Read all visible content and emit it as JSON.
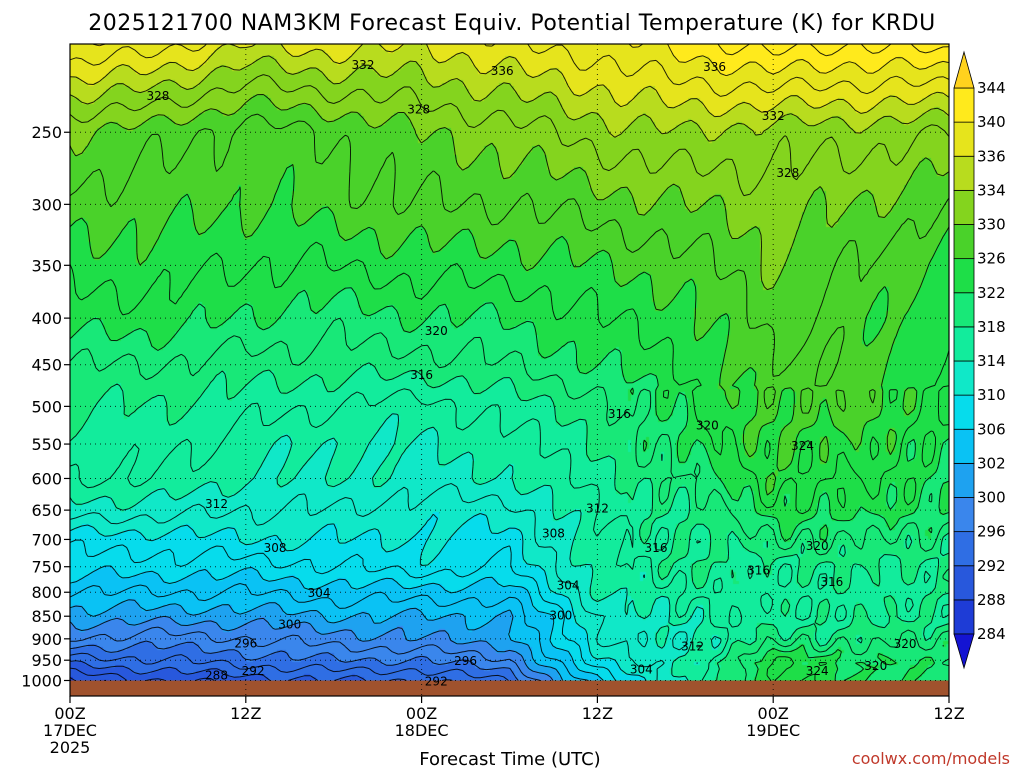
{
  "chart_data": {
    "type": "heatmap",
    "title": "2025121700 NAM3KM Forecast Equiv. Potential Temperature (K) for KRDU",
    "xlabel": "Forecast Time (UTC)",
    "ylabel": "",
    "credit": "coolwx.com/models",
    "x_range": [
      0,
      60
    ],
    "x_unit": "hours from 2025-12-17 00Z",
    "x_ticks": [
      {
        "x": 0,
        "line1": "00Z",
        "line2": "17DEC",
        "line3": "2025"
      },
      {
        "x": 12,
        "line1": "12Z",
        "line2": "",
        "line3": ""
      },
      {
        "x": 24,
        "line1": "00Z",
        "line2": "18DEC",
        "line3": ""
      },
      {
        "x": 36,
        "line1": "12Z",
        "line2": "",
        "line3": ""
      },
      {
        "x": 48,
        "line1": "00Z",
        "line2": "19DEC",
        "line3": ""
      },
      {
        "x": 60,
        "line1": "12Z",
        "line2": "",
        "line3": ""
      }
    ],
    "y_axis": {
      "scale": "log",
      "unit": "hPa",
      "range": [
        1040,
        200
      ],
      "inverted": true,
      "ticks": [
        250,
        300,
        350,
        400,
        450,
        500,
        550,
        600,
        650,
        700,
        750,
        800,
        850,
        900,
        950,
        1000
      ]
    },
    "colorbar": {
      "levels": [
        284,
        288,
        292,
        296,
        300,
        302,
        306,
        310,
        314,
        318,
        322,
        326,
        330,
        334,
        336,
        340,
        344
      ],
      "colors": [
        "#1414d2",
        "#1e3cd6",
        "#2858dc",
        "#2f6ee4",
        "#3a86ec",
        "#1ea2f0",
        "#0ac2f4",
        "#06dcec",
        "#10e8c8",
        "#12ec9c",
        "#18e878",
        "#1ede48",
        "#4ad22a",
        "#84d41e",
        "#b8dc1e",
        "#e6e41c",
        "#ffea1c",
        "#ffd21e"
      ]
    },
    "pressure_levels": [
      200,
      250,
      300,
      350,
      400,
      450,
      500,
      550,
      600,
      650,
      700,
      750,
      800,
      850,
      900,
      950,
      1000
    ],
    "times": [
      0,
      6,
      12,
      18,
      24,
      30,
      36,
      42,
      48,
      54,
      60
    ],
    "theta_e": [
      [
        340,
        339,
        336,
        337,
        336,
        338,
        339,
        341,
        343,
        342,
        343
      ],
      [
        330,
        329,
        327,
        328,
        330,
        331,
        333,
        334,
        333,
        333,
        332
      ],
      [
        327,
        327,
        326,
        327,
        328,
        328,
        329,
        330,
        331,
        330,
        328
      ],
      [
        325,
        325,
        324,
        324,
        325,
        325,
        326,
        327,
        330,
        328,
        325
      ],
      [
        323,
        323,
        322,
        321,
        322,
        322,
        324,
        325,
        329,
        327,
        324
      ],
      [
        320,
        320,
        319,
        319,
        319,
        320,
        322,
        324,
        328,
        327,
        324
      ],
      [
        318,
        318,
        317,
        316,
        315,
        317,
        319,
        323,
        327,
        327,
        324
      ],
      [
        317,
        317,
        315,
        314,
        314,
        315,
        318,
        322,
        326,
        325,
        323
      ],
      [
        316,
        316,
        314,
        314,
        313,
        314,
        317,
        320,
        325,
        324,
        322
      ],
      [
        313,
        313,
        312,
        312,
        311,
        311,
        316,
        318,
        323,
        323,
        321
      ],
      [
        309,
        309,
        310,
        310,
        310,
        309,
        316,
        317,
        320,
        320,
        319
      ],
      [
        307,
        307,
        307,
        308,
        309,
        308,
        315,
        318,
        317,
        318,
        318
      ],
      [
        304,
        304,
        304,
        305,
        305,
        305,
        314,
        316,
        317,
        317,
        318
      ],
      [
        301,
        301,
        301,
        302,
        302,
        302,
        312,
        315,
        317,
        317,
        318
      ],
      [
        298,
        297,
        298,
        299,
        300,
        301,
        312,
        313,
        319,
        319,
        320
      ],
      [
        293,
        294,
        295,
        296,
        296,
        298,
        310,
        314,
        324,
        322,
        321
      ],
      [
        288,
        290,
        291,
        292,
        292,
        294,
        306,
        314,
        324,
        322,
        321
      ]
    ],
    "contour_labels": [
      {
        "text": "332",
        "t": 20.0,
        "p": 211
      },
      {
        "text": "336",
        "t": 29.5,
        "p": 214
      },
      {
        "text": "336",
        "t": 44.0,
        "p": 212
      },
      {
        "text": "328",
        "t": 6.0,
        "p": 228
      },
      {
        "text": "328",
        "t": 23.8,
        "p": 236
      },
      {
        "text": "332",
        "t": 48.0,
        "p": 240
      },
      {
        "text": "328",
        "t": 49.0,
        "p": 277
      },
      {
        "text": "320",
        "t": 25.0,
        "p": 413
      },
      {
        "text": "316",
        "t": 24.0,
        "p": 462
      },
      {
        "text": "316",
        "t": 37.5,
        "p": 510
      },
      {
        "text": "320",
        "t": 43.5,
        "p": 525
      },
      {
        "text": "324",
        "t": 50.0,
        "p": 553
      },
      {
        "text": "312",
        "t": 10.0,
        "p": 640
      },
      {
        "text": "312",
        "t": 36.0,
        "p": 647
      },
      {
        "text": "308",
        "t": 33.0,
        "p": 690
      },
      {
        "text": "316",
        "t": 40.0,
        "p": 715
      },
      {
        "text": "320",
        "t": 51.0,
        "p": 712
      },
      {
        "text": "308",
        "t": 14.0,
        "p": 715
      },
      {
        "text": "316",
        "t": 47.0,
        "p": 757
      },
      {
        "text": "316",
        "t": 52.0,
        "p": 780
      },
      {
        "text": "304",
        "t": 34.0,
        "p": 786
      },
      {
        "text": "304",
        "t": 17.0,
        "p": 802
      },
      {
        "text": "300",
        "t": 33.5,
        "p": 848
      },
      {
        "text": "300",
        "t": 15.0,
        "p": 868
      },
      {
        "text": "296",
        "t": 12.0,
        "p": 911
      },
      {
        "text": "312",
        "t": 42.5,
        "p": 918
      },
      {
        "text": "320",
        "t": 57.0,
        "p": 912
      },
      {
        "text": "296",
        "t": 27.0,
        "p": 952
      },
      {
        "text": "292",
        "t": 12.5,
        "p": 976
      },
      {
        "text": "288",
        "t": 10.0,
        "p": 987
      },
      {
        "text": "304",
        "t": 39.0,
        "p": 972
      },
      {
        "text": "324",
        "t": 51.0,
        "p": 976
      },
      {
        "text": "320",
        "t": 55.0,
        "p": 964
      },
      {
        "text": "292",
        "t": 25.0,
        "p": 1002
      }
    ],
    "ground": {
      "color": "#a0522d",
      "pressure_top": 1000
    },
    "grid": "dotted"
  }
}
